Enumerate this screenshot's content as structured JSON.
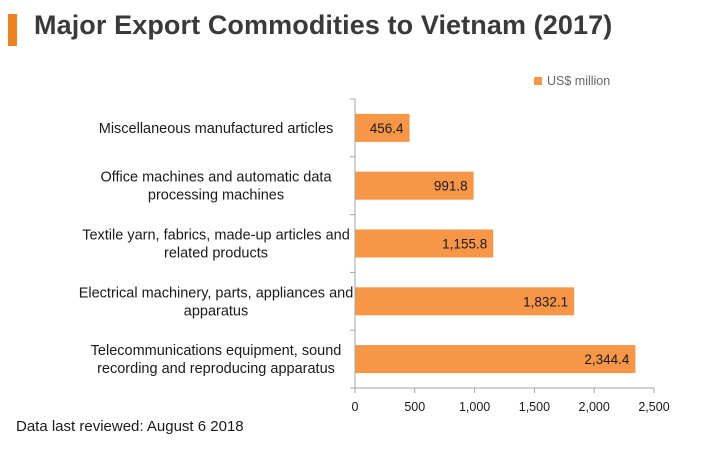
{
  "header": {
    "title": "Major Export Commodities to Vietnam (2017)",
    "accent_color": "#f0821e"
  },
  "footnote": "Data last reviewed: August 6 2018",
  "chart_data": {
    "type": "bar",
    "orientation": "horizontal",
    "title": "Major Export Commodities to Vietnam (2017)",
    "xlabel": "",
    "ylabel": "",
    "categories": [
      [
        "Miscellaneous manufactured articles"
      ],
      [
        "Office machines and automatic data",
        "processing machines"
      ],
      [
        "Textile yarn, fabrics, made-up articles and",
        "related products"
      ],
      [
        "Electrical machinery, parts, appliances and",
        "apparatus"
      ],
      [
        "Telecommunications equipment, sound",
        "recording and reproducing apparatus"
      ]
    ],
    "series": [
      {
        "name": "US$ million",
        "color": "#f79646",
        "values": [
          456.4,
          991.8,
          1155.8,
          1832.1,
          2344.4
        ],
        "value_labels": [
          "456.4",
          "991.8",
          "1,155.8",
          "1,832.1",
          "2,344.4"
        ]
      }
    ],
    "xlim": [
      0,
      2500
    ],
    "ticks": [
      0,
      500,
      1000,
      1500,
      2000,
      2500
    ],
    "tick_labels": [
      "0",
      "500",
      "1,000",
      "1,500",
      "2,000",
      "2,500"
    ],
    "grid": false,
    "legend": "top-right"
  }
}
